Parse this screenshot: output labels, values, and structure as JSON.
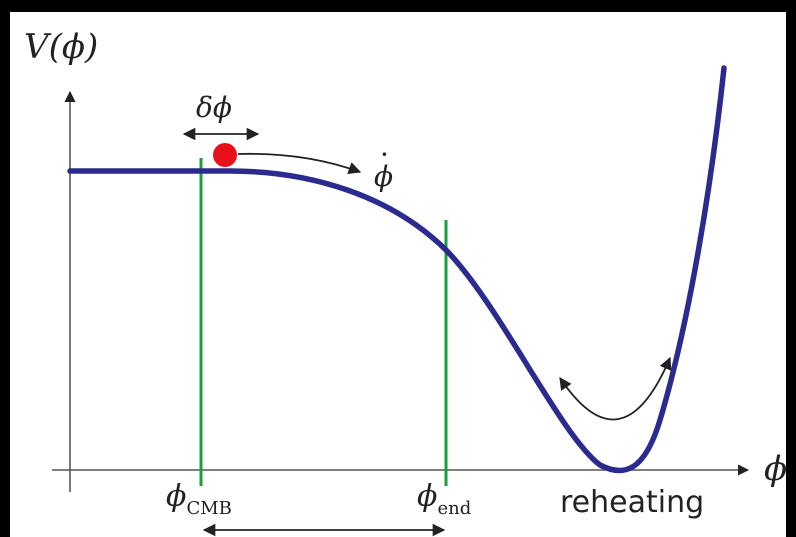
{
  "labels": {
    "y_axis_var": "V",
    "y_axis_arg": "(ϕ)",
    "x_axis": "ϕ",
    "fluctuation": "δϕ",
    "velocity": "ϕ",
    "velocity_dot": "·",
    "cmb_symbol": "ϕ",
    "cmb_sub": "CMB",
    "end_symbol": "ϕ",
    "end_sub": "end",
    "reheating": "reheating"
  },
  "colors": {
    "background": "#000000",
    "canvas": "#ffffff",
    "potential_curve": "#2b2b8f",
    "markers": "#1f9e3a",
    "field_ball": "#e8101a",
    "ink": "#222222"
  }
}
